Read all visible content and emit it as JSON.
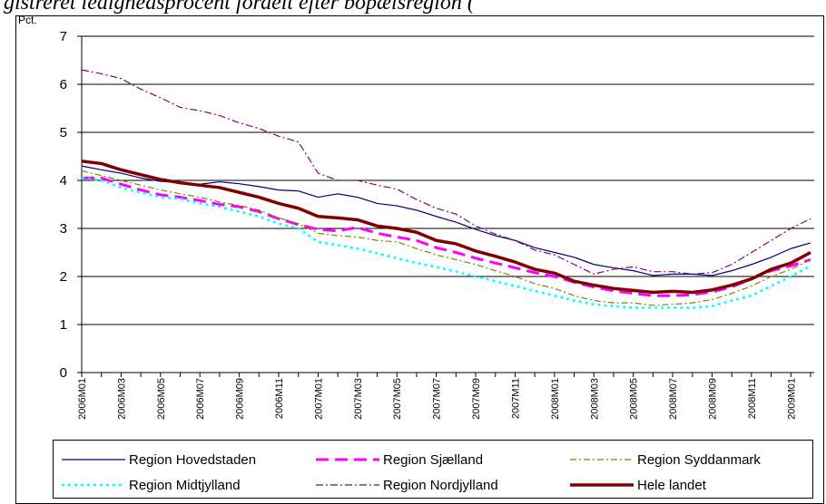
{
  "chart_data": {
    "type": "line",
    "title": "gistreret ledighedsprocent fordelt efter bopælsregion (",
    "y_label": "Pct.",
    "categories": [
      "2006M01",
      null,
      "2006M03",
      null,
      "2006M05",
      null,
      "2006M07",
      null,
      "2006M09",
      null,
      "2006M11",
      null,
      "2007M01",
      null,
      "2007M03",
      null,
      "2007M05",
      null,
      "2007M07",
      null,
      "2007M09",
      null,
      "2007M11",
      null,
      "2008M01",
      null,
      "2008M03",
      null,
      "2008M05",
      null,
      "2008M07",
      null,
      "2008M09",
      null,
      "2008M11",
      null,
      "2009M01",
      null
    ],
    "ylim": [
      0,
      7
    ],
    "yticks": [
      0,
      1,
      2,
      3,
      4,
      5,
      6,
      7
    ],
    "grid": true,
    "series": [
      {
        "name": "Region Hovedstaden",
        "color": "#000080",
        "width": 1.2,
        "dash": "",
        "values": [
          4.3,
          4.22,
          4.15,
          4.05,
          3.98,
          3.95,
          3.92,
          3.97,
          3.93,
          3.87,
          3.8,
          3.78,
          3.65,
          3.72,
          3.65,
          3.52,
          3.47,
          3.38,
          3.25,
          3.13,
          2.98,
          2.85,
          2.75,
          2.6,
          2.5,
          2.4,
          2.25,
          2.18,
          2.12,
          2.02,
          2.05,
          2.05,
          2.02,
          2.12,
          2.25,
          2.4,
          2.58,
          2.7
        ]
      },
      {
        "name": "Region Sjælland",
        "color": "#ff00ff",
        "width": 3,
        "dash": "14,7",
        "values": [
          4.05,
          4.05,
          3.92,
          3.8,
          3.7,
          3.65,
          3.58,
          3.5,
          3.45,
          3.35,
          3.2,
          3.08,
          2.98,
          2.95,
          3.02,
          2.9,
          2.82,
          2.75,
          2.6,
          2.5,
          2.38,
          2.28,
          2.18,
          2.08,
          2.0,
          1.88,
          1.78,
          1.7,
          1.65,
          1.6,
          1.6,
          1.62,
          1.68,
          1.78,
          1.95,
          2.12,
          2.22,
          2.35
        ]
      },
      {
        "name": "Region Syddanmark",
        "color": "#808000",
        "width": 1.2,
        "dash": "7,3,2,3",
        "values": [
          4.2,
          4.1,
          4.0,
          3.9,
          3.8,
          3.72,
          3.65,
          3.55,
          3.48,
          3.38,
          3.22,
          3.1,
          2.9,
          2.85,
          2.82,
          2.75,
          2.72,
          2.58,
          2.45,
          2.35,
          2.25,
          2.12,
          2.0,
          1.85,
          1.75,
          1.6,
          1.5,
          1.45,
          1.45,
          1.4,
          1.42,
          1.45,
          1.52,
          1.65,
          1.8,
          2.0,
          2.15,
          2.35
        ]
      },
      {
        "name": "Region Midtjylland",
        "color": "#00ffff",
        "width": 2.5,
        "dash": "3,4",
        "values": [
          4.05,
          4.0,
          3.85,
          3.75,
          3.65,
          3.62,
          3.52,
          3.45,
          3.35,
          3.25,
          3.1,
          3.0,
          2.72,
          2.65,
          2.58,
          2.48,
          2.38,
          2.28,
          2.2,
          2.1,
          2.0,
          1.9,
          1.8,
          1.7,
          1.6,
          1.5,
          1.42,
          1.38,
          1.35,
          1.35,
          1.35,
          1.35,
          1.38,
          1.5,
          1.6,
          1.8,
          2.0,
          2.22
        ]
      },
      {
        "name": "Region Nordjylland",
        "color": "#800080",
        "width": 1.2,
        "dash": "8,3,2,3",
        "values": [
          6.3,
          6.22,
          6.12,
          5.9,
          5.72,
          5.52,
          5.45,
          5.35,
          5.2,
          5.08,
          4.92,
          4.8,
          4.15,
          4.0,
          4.0,
          3.9,
          3.82,
          3.6,
          3.42,
          3.3,
          3.05,
          2.88,
          2.75,
          2.55,
          2.45,
          2.25,
          2.05,
          2.15,
          2.2,
          2.1,
          2.1,
          2.05,
          2.08,
          2.25,
          2.5,
          2.75,
          3.0,
          3.2
        ]
      },
      {
        "name": "Hele landet",
        "color": "#800000",
        "width": 3.5,
        "dash": "",
        "values": [
          4.4,
          4.35,
          4.22,
          4.12,
          4.02,
          3.95,
          3.9,
          3.85,
          3.75,
          3.65,
          3.52,
          3.42,
          3.25,
          3.22,
          3.18,
          3.05,
          3.0,
          2.92,
          2.75,
          2.68,
          2.53,
          2.42,
          2.3,
          2.15,
          2.07,
          1.9,
          1.82,
          1.75,
          1.71,
          1.67,
          1.69,
          1.67,
          1.72,
          1.82,
          1.95,
          2.15,
          2.28,
          2.5
        ]
      }
    ]
  }
}
